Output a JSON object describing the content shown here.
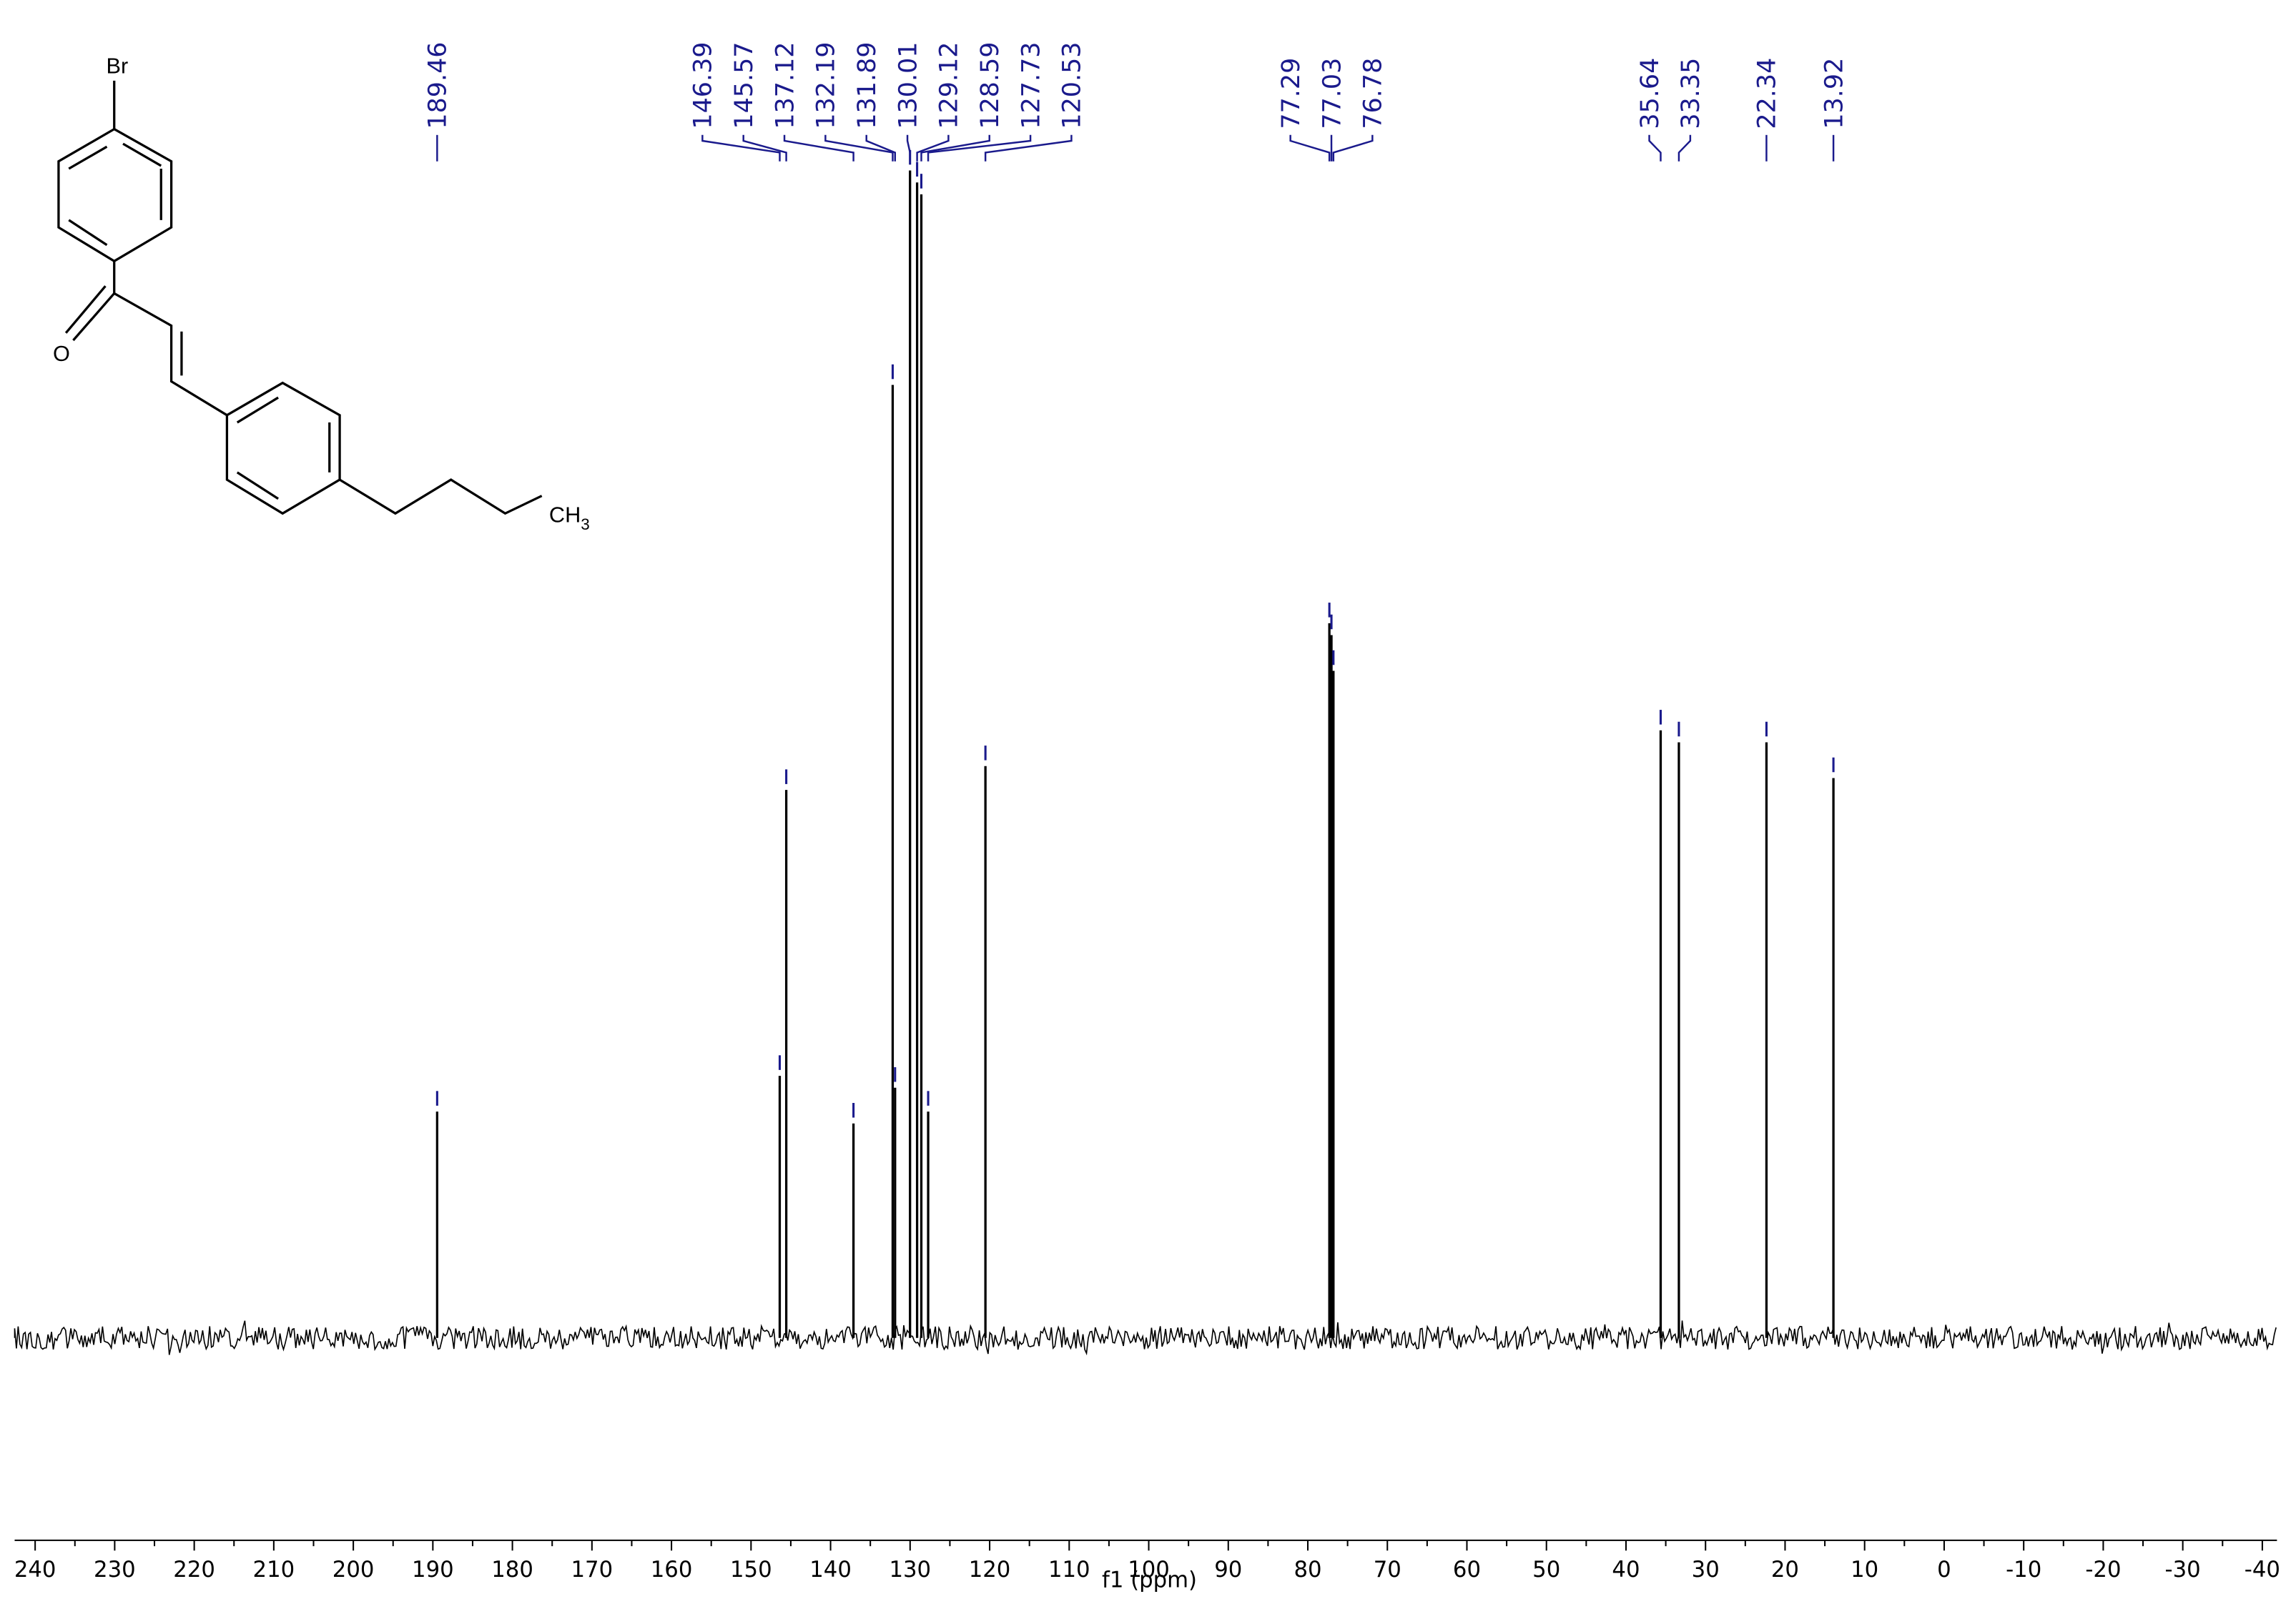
{
  "chart_data": {
    "type": "spectrum",
    "x_label": "f1 (ppm)",
    "xlim": [
      240,
      -40
    ],
    "xticks": [
      240,
      230,
      220,
      210,
      200,
      190,
      180,
      170,
      160,
      150,
      140,
      130,
      120,
      110,
      100,
      90,
      80,
      70,
      60,
      50,
      40,
      30,
      20,
      10,
      0,
      -10,
      -20,
      -30,
      -40
    ],
    "ylim": [
      0,
      100
    ],
    "color": "#000000",
    "label_color": "#1a1a8c",
    "peaks": [
      {
        "ppm": 189.46,
        "intensity": 19
      },
      {
        "ppm": 146.39,
        "intensity": 22
      },
      {
        "ppm": 145.57,
        "intensity": 46
      },
      {
        "ppm": 137.12,
        "intensity": 18
      },
      {
        "ppm": 132.19,
        "intensity": 80
      },
      {
        "ppm": 131.89,
        "intensity": 21
      },
      {
        "ppm": 130.01,
        "intensity": 98
      },
      {
        "ppm": 129.12,
        "intensity": 97
      },
      {
        "ppm": 128.59,
        "intensity": 96
      },
      {
        "ppm": 127.73,
        "intensity": 19
      },
      {
        "ppm": 120.53,
        "intensity": 48
      },
      {
        "ppm": 77.29,
        "intensity": 60
      },
      {
        "ppm": 77.03,
        "intensity": 59
      },
      {
        "ppm": 76.78,
        "intensity": 56
      },
      {
        "ppm": 35.64,
        "intensity": 51
      },
      {
        "ppm": 33.35,
        "intensity": 50
      },
      {
        "ppm": 22.34,
        "intensity": 50
      },
      {
        "ppm": 13.92,
        "intensity": 47
      }
    ],
    "structure": {
      "bromine": "Br",
      "oxygen": "O",
      "methyl": {
        "text": "CH",
        "subscript": "3"
      }
    }
  }
}
